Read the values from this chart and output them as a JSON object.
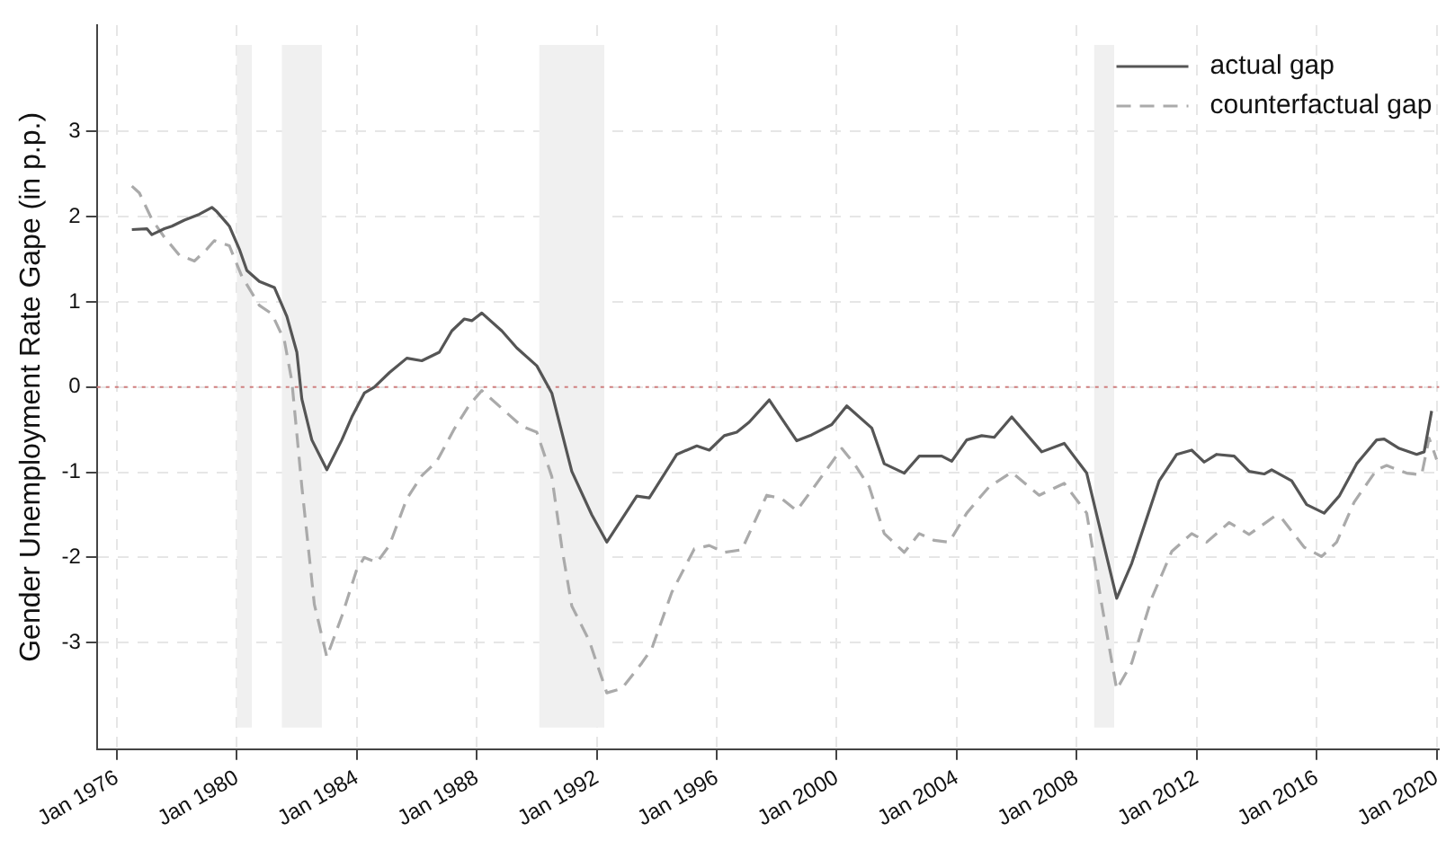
{
  "chart_data": {
    "type": "line",
    "ylabel": "Gender Unemployment Rate Gape (in p.p.)",
    "xlim": [
      "1975-05",
      "2020-02"
    ],
    "xticks": [
      {
        "value": "1976-01",
        "label": "Jan 1976"
      },
      {
        "value": "1980-01",
        "label": "Jan 1980"
      },
      {
        "value": "1984-01",
        "label": "Jan 1984"
      },
      {
        "value": "1988-01",
        "label": "Jan 1988"
      },
      {
        "value": "1992-01",
        "label": "Jan 1992"
      },
      {
        "value": "1996-01",
        "label": "Jan 1996"
      },
      {
        "value": "2000-01",
        "label": "Jan 2000"
      },
      {
        "value": "2004-01",
        "label": "Jan 2004"
      },
      {
        "value": "2008-01",
        "label": "Jan 2008"
      },
      {
        "value": "2012-01",
        "label": "Jan 2012"
      },
      {
        "value": "2016-01",
        "label": "Jan 2016"
      },
      {
        "value": "2020-01",
        "label": "Jan 2020"
      }
    ],
    "ylim": [
      -4.25,
      4.25
    ],
    "yticks": [
      -3,
      -2,
      -1,
      0,
      1,
      2,
      3
    ],
    "grid": true,
    "legend": "top right",
    "marker": "none",
    "ref_lines": [
      {
        "axis": "y",
        "value": 0,
        "color": "#d08080",
        "line_style": "dotted"
      }
    ],
    "bands": [
      {
        "axis": "x",
        "from": "1980-01",
        "to": "1980-07",
        "color": "#f0f0f0"
      },
      {
        "axis": "x",
        "from": "1981-07",
        "to": "1982-11",
        "color": "#f0f0f0"
      },
      {
        "axis": "x",
        "from": "1990-02",
        "to": "1992-04",
        "color": "#f0f0f0"
      },
      {
        "axis": "x",
        "from": "2008-08",
        "to": "2009-04",
        "color": "#f0f0f0"
      }
    ],
    "series": [
      {
        "name": "actual gap",
        "color": "#555555",
        "line_style": "solid",
        "x": [
          "1976-07",
          "1977-01",
          "1977-03",
          "1977-08",
          "1977-11",
          "1978-04",
          "1978-10",
          "1979-03",
          "1979-05",
          "1979-10",
          "1980-02",
          "1980-05",
          "1980-10",
          "1981-04",
          "1981-09",
          "1982-01",
          "1982-03",
          "1982-07",
          "1983-01",
          "1983-07",
          "1983-11",
          "1984-04",
          "1984-08",
          "1985-02",
          "1985-09",
          "1986-03",
          "1986-10",
          "1987-03",
          "1987-08",
          "1987-11",
          "1988-03",
          "1988-11",
          "1989-05",
          "1990-01",
          "1990-07",
          "1991-03",
          "1991-11",
          "1992-05",
          "1993-05",
          "1993-10",
          "1994-09",
          "1995-05",
          "1995-10",
          "1996-04",
          "1996-09",
          "1997-02",
          "1997-10",
          "1998-03",
          "1998-09",
          "1999-03",
          "1999-11",
          "2000-05",
          "2001-03",
          "2001-08",
          "2002-04",
          "2002-10",
          "2003-07",
          "2003-11",
          "2004-05",
          "2004-11",
          "2005-04",
          "2005-11",
          "2006-11",
          "2007-08",
          "2008-05",
          "2009-05",
          "2009-11",
          "2010-10",
          "2011-05",
          "2011-11",
          "2012-04",
          "2012-09",
          "2013-04",
          "2013-10",
          "2014-04",
          "2014-07",
          "2015-03",
          "2015-09",
          "2016-04",
          "2016-10",
          "2017-05",
          "2018-01",
          "2018-04",
          "2018-10",
          "2019-05",
          "2019-08",
          "2019-11"
        ],
        "values": [
          1.85,
          1.86,
          1.79,
          1.86,
          1.89,
          1.96,
          2.03,
          2.11,
          2.06,
          1.89,
          1.62,
          1.37,
          1.24,
          1.17,
          0.83,
          0.41,
          -0.14,
          -0.62,
          -0.97,
          -0.62,
          -0.35,
          -0.07,
          0.0,
          0.17,
          0.34,
          0.31,
          0.41,
          0.66,
          0.8,
          0.78,
          0.87,
          0.66,
          0.46,
          0.25,
          -0.07,
          -0.99,
          -1.5,
          -1.82,
          -1.28,
          -1.3,
          -0.79,
          -0.69,
          -0.74,
          -0.57,
          -0.53,
          -0.41,
          -0.15,
          -0.37,
          -0.63,
          -0.56,
          -0.44,
          -0.22,
          -0.48,
          -0.9,
          -1.01,
          -0.81,
          -0.81,
          -0.87,
          -0.62,
          -0.57,
          -0.59,
          -0.35,
          -0.76,
          -0.66,
          -1.01,
          -2.48,
          -2.07,
          -1.1,
          -0.79,
          -0.74,
          -0.88,
          -0.79,
          -0.81,
          -0.99,
          -1.02,
          -0.97,
          -1.1,
          -1.38,
          -1.48,
          -1.28,
          -0.9,
          -0.62,
          -0.61,
          -0.72,
          -0.79,
          -0.76,
          -0.28
        ]
      },
      {
        "name": "counterfactual gap",
        "color": "#aaaaaa",
        "line_style": "dashed",
        "x": [
          "1976-07",
          "1976-10",
          "1977-03",
          "1977-08",
          "1978-02",
          "1978-08",
          "1979-01",
          "1979-04",
          "1979-10",
          "1980-03",
          "1980-10",
          "1981-03",
          "1981-08",
          "1981-11",
          "1982-03",
          "1982-08",
          "1983-01",
          "1983-07",
          "1984-01",
          "1984-04",
          "1984-09",
          "1985-02",
          "1985-09",
          "1986-03",
          "1986-09",
          "1987-04",
          "1987-10",
          "1988-03",
          "1988-11",
          "1989-07",
          "1990-01",
          "1990-07",
          "1990-11",
          "1991-03",
          "1991-10",
          "1992-05",
          "1992-11",
          "1993-07",
          "1993-11",
          "1994-07",
          "1995-04",
          "1995-10",
          "1996-04",
          "1996-11",
          "1997-09",
          "1998-03",
          "1998-09",
          "1999-04",
          "2000-03",
          "2000-08",
          "2001-02",
          "2001-08",
          "2002-04",
          "2002-10",
          "2003-04",
          "2003-10",
          "2004-05",
          "2004-11",
          "2005-02",
          "2005-11",
          "2006-10",
          "2007-08",
          "2008-05",
          "2008-11",
          "2009-05",
          "2009-11",
          "2010-07",
          "2011-03",
          "2011-11",
          "2012-05",
          "2013-02",
          "2013-10",
          "2014-08",
          "2014-11",
          "2015-08",
          "2016-03",
          "2016-09",
          "2017-04",
          "2018-01",
          "2018-05",
          "2019-01",
          "2019-07",
          "2019-10",
          "2020-01"
        ],
        "values": [
          2.36,
          2.28,
          1.97,
          1.76,
          1.55,
          1.48,
          1.62,
          1.72,
          1.66,
          1.3,
          0.96,
          0.86,
          0.55,
          0.07,
          -1.17,
          -2.55,
          -3.17,
          -2.69,
          -2.14,
          -2.0,
          -2.06,
          -1.86,
          -1.31,
          -1.04,
          -0.87,
          -0.49,
          -0.21,
          -0.04,
          -0.25,
          -0.46,
          -0.53,
          -1.05,
          -1.88,
          -2.57,
          -2.98,
          -3.59,
          -3.54,
          -3.24,
          -3.07,
          -2.41,
          -1.9,
          -1.86,
          -1.94,
          -1.91,
          -1.27,
          -1.31,
          -1.45,
          -1.17,
          -0.72,
          -0.9,
          -1.17,
          -1.72,
          -1.94,
          -1.72,
          -1.8,
          -1.82,
          -1.48,
          -1.27,
          -1.17,
          -1.0,
          -1.27,
          -1.13,
          -1.48,
          -2.55,
          -3.55,
          -3.24,
          -2.48,
          -1.93,
          -1.72,
          -1.82,
          -1.59,
          -1.73,
          -1.52,
          -1.54,
          -1.88,
          -1.99,
          -1.82,
          -1.35,
          -0.97,
          -0.92,
          -1.01,
          -1.03,
          -0.6,
          -0.85
        ]
      }
    ]
  }
}
